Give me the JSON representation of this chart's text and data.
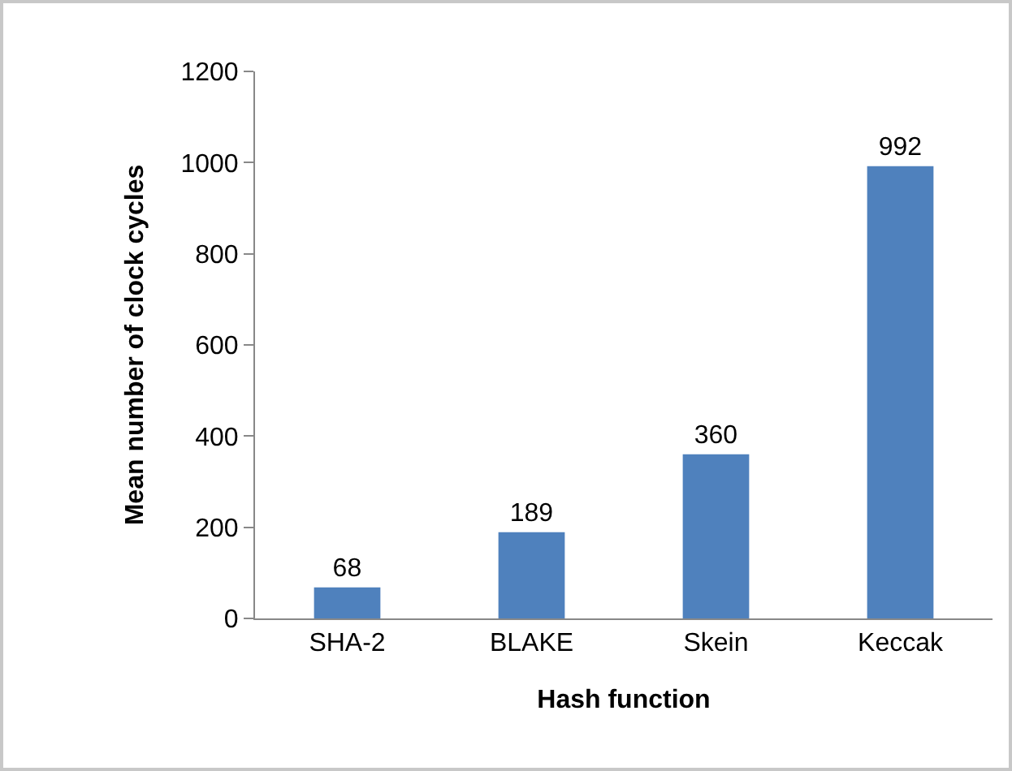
{
  "chart_data": {
    "type": "bar",
    "xlabel": "Hash function",
    "ylabel": "Mean number of clock cycles",
    "categories": [
      "SHA-2",
      "BLAKE",
      "Skein",
      "Keccak"
    ],
    "values": [
      68,
      189,
      360,
      992
    ],
    "color": "#4f81bd",
    "ylim": [
      0,
      1200
    ],
    "yticks": [
      0,
      200,
      400,
      600,
      800,
      1000,
      1200
    ],
    "grid": false,
    "data_labels": true,
    "legend": false
  }
}
